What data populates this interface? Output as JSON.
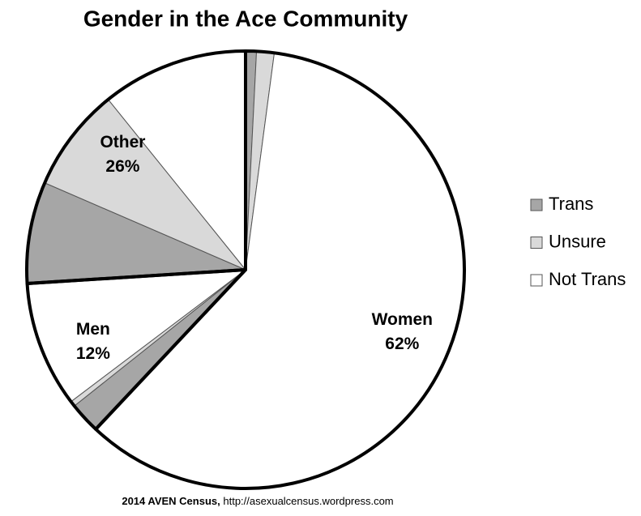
{
  "chart_data": {
    "type": "pie",
    "title": "Gender in the Ace Community",
    "groups": [
      "Women",
      "Men",
      "Other"
    ],
    "values": [
      62,
      12,
      26
    ],
    "value_labels": [
      "62%",
      "12%",
      "26%"
    ],
    "series": [
      {
        "name": "Trans",
        "color": "#a6a6a6",
        "values": [
          0.8,
          2.3,
          7.5
        ]
      },
      {
        "name": "Unsure",
        "color": "#d9d9d9",
        "values": [
          1.3,
          0.4,
          7.7
        ]
      },
      {
        "name": "Not Trans",
        "color": "#ffffff",
        "values": [
          59.9,
          9.3,
          10.8
        ]
      }
    ],
    "source_bold": "2014 AVEN Census,",
    "source_text": "http://asexualcensus.wordpress.com"
  }
}
